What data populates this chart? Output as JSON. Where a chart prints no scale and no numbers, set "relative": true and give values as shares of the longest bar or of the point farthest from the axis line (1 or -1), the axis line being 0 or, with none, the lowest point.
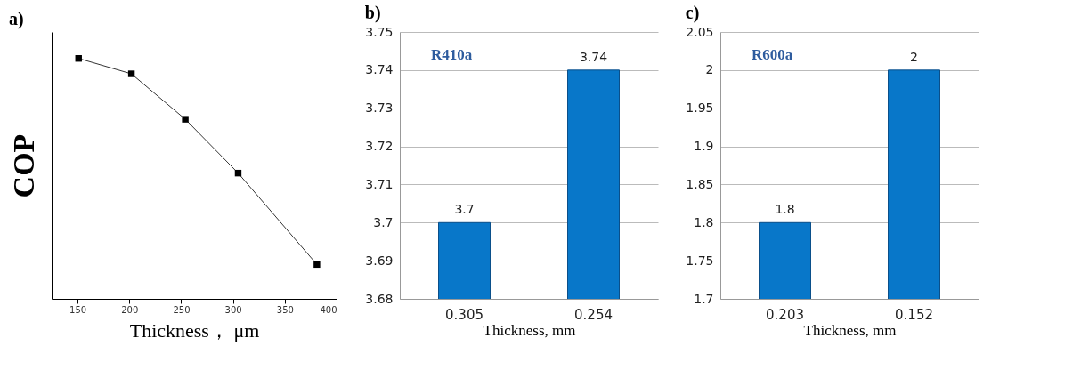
{
  "chart_data": [
    {
      "type": "line",
      "title": "a)",
      "xlabel": "Thickness， μm",
      "ylabel": "COP",
      "relative": true,
      "x": [
        151,
        202,
        254,
        305,
        381
      ],
      "values": [
        1,
        0.936,
        0.747,
        0.523,
        0.143
      ],
      "color": "#000000",
      "xlim": [
        125,
        400
      ],
      "xticks": [
        150,
        200,
        250,
        300,
        350,
        400
      ],
      "marker": "square",
      "line_style": "solid",
      "grid": false
    },
    {
      "type": "bar",
      "title": "b)",
      "xlabel": "Thickness, mm",
      "categories": [
        "0.305",
        "0.254"
      ],
      "values": [
        3.7,
        3.74
      ],
      "color": "#0877c9",
      "ylim": [
        3.68,
        3.75
      ],
      "yticks": [
        3.68,
        3.69,
        3.7,
        3.71,
        3.72,
        3.73,
        3.74,
        3.75
      ],
      "grid": "y",
      "data_labels": true,
      "annotations": [
        "R410a"
      ]
    },
    {
      "type": "bar",
      "title": "c)",
      "xlabel": "Thickness, mm",
      "categories": [
        "0.203",
        "0.152"
      ],
      "values": [
        1.8,
        2
      ],
      "color": "#0877c9",
      "ylim": [
        1.7,
        2.05
      ],
      "yticks": [
        1.7,
        1.75,
        1.8,
        1.85,
        1.9,
        1.95,
        2,
        2.05
      ],
      "grid": "y",
      "data_labels": true,
      "annotations": [
        "R600a"
      ]
    }
  ]
}
